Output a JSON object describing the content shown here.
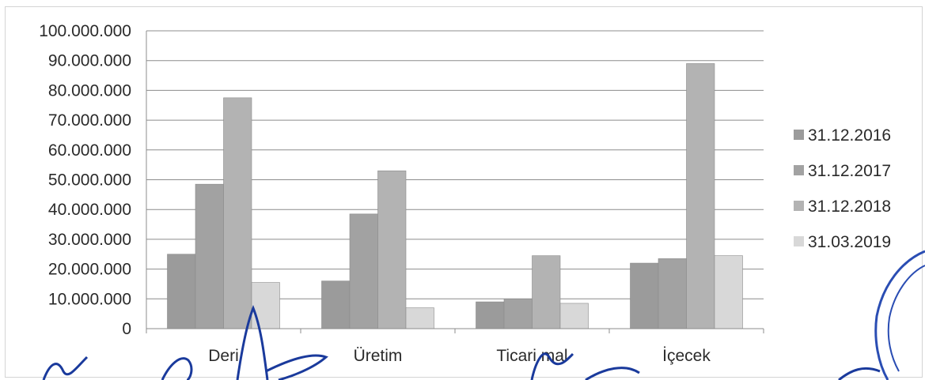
{
  "chart_data": {
    "type": "bar",
    "categories": [
      "Deri",
      "Üretim",
      "Ticari mal",
      "İçecek"
    ],
    "series": [
      {
        "name": "31.12.2016",
        "values": [
          25000000,
          16000000,
          9000000,
          22000000
        ],
        "color": "#9b9b9b"
      },
      {
        "name": "31.12.2017",
        "values": [
          48500000,
          38500000,
          10000000,
          23500000
        ],
        "color": "#a2a2a2"
      },
      {
        "name": "31.12.2018",
        "values": [
          77500000,
          53000000,
          24500000,
          89000000
        ],
        "color": "#b3b3b3"
      },
      {
        "name": "31.03.2019",
        "values": [
          15500000,
          7000000,
          8500000,
          24500000
        ],
        "color": "#d8d8d8"
      }
    ],
    "yticks": [
      "0",
      "10.000.000",
      "20.000.000",
      "30.000.000",
      "40.000.000",
      "50.000.000",
      "60.000.000",
      "70.000.000",
      "80.000.000",
      "90.000.000",
      "100.000.000"
    ],
    "ylim": [
      0,
      100000000
    ],
    "grid": true,
    "legend_position": "right"
  }
}
